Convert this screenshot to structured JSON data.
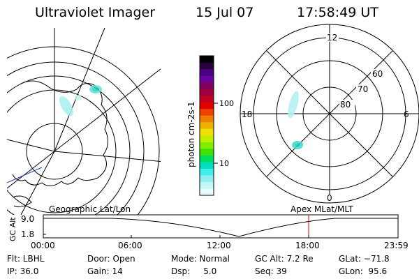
{
  "header": {
    "title": "Ultraviolet Imager",
    "date": "15 Jul 07",
    "time": "17:58:49 UT"
  },
  "left_map": {
    "caption": "Geographic Lat/Lon"
  },
  "colorbar": {
    "unit_label": "photon cm-2s-1",
    "ticks": [
      "100",
      "10"
    ],
    "colors": [
      "#000000",
      "#2a0040",
      "#4a0080",
      "#6a00a0",
      "#800060",
      "#a00040",
      "#c00020",
      "#e00000",
      "#f04000",
      "#f08000",
      "#f0b000",
      "#f0e000",
      "#c0f000",
      "#80f000",
      "#40e000",
      "#00e060",
      "#00e0c0",
      "#40f0f0",
      "#90f0f0",
      "#c0f8f8",
      "#e8ffff"
    ]
  },
  "polar_plot": {
    "caption": "Apex MLat/MLT",
    "mlt_labels": {
      "top": "12",
      "left": "18",
      "right": "6",
      "bottom": "0"
    },
    "lat_labels": [
      "60",
      "70",
      "80"
    ]
  },
  "alt_strip": {
    "ylabel": "GC Alt",
    "y_ticks": [
      "9.0",
      "1.8"
    ],
    "x_ticks": [
      "00:00",
      "06:00",
      "12:00",
      "18:00",
      "23:59"
    ],
    "marker_color": "#e00000"
  },
  "info": {
    "filter": "Flt: LBHL",
    "ip": "IP: 36.0",
    "door": "Door: Open",
    "gain": "Gain: 14",
    "mode": "Mode: Normal",
    "dsp": "Dsp:     5.0",
    "gc_alt": "GC Alt: 7.2 Re",
    "seq": "Seq: 39",
    "glat": "GLat: −71.8",
    "glon": "GLon:  95.6"
  }
}
